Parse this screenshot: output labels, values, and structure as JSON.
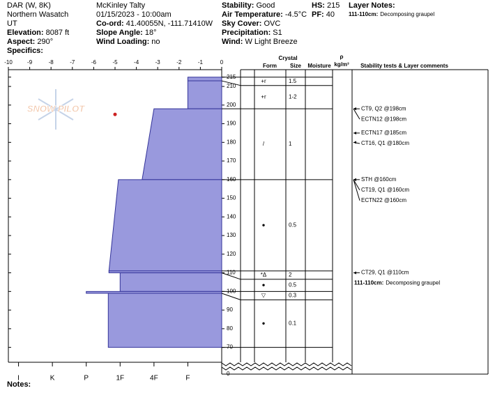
{
  "header": {
    "columns": [
      [
        {
          "value": "DAR (W, 8K)"
        },
        {
          "value": "Northern Wasatch"
        },
        {
          "value": "UT"
        },
        {
          "label": "Elevation:",
          "value": "8087 ft"
        },
        {
          "label": "Aspect:",
          "value": "290°"
        },
        {
          "label": "Specifics:"
        }
      ],
      [
        {
          "value": "McKinley Talty"
        },
        {
          "value": "01/15/2023 - 10:00am"
        },
        {
          "label": "Co-ord:",
          "value": "41.40055N, -111.71410W"
        },
        {
          "label": "Slope Angle:",
          "value": "18°"
        },
        {
          "label": "Wind Loading:",
          "value": "no"
        }
      ],
      [
        {
          "label": "Stability:",
          "value": "Good"
        },
        {
          "label": "Air Temperature:",
          "value": "-4.5°C"
        },
        {
          "label": "Sky Cover:",
          "value": "OVC"
        },
        {
          "label": "Precipitation:",
          "value": "S1"
        },
        {
          "label": "Wind:",
          "value": "W Light Breeze"
        }
      ],
      [
        {
          "label": "HS:",
          "value": "215"
        },
        {
          "label": "PF:",
          "value": "40"
        }
      ],
      [
        {
          "label": "Layer Notes:"
        },
        {
          "label": "111-110cm:",
          "value": "Decomposing graupel"
        }
      ]
    ]
  },
  "logo": "SNOW PILOT",
  "notes_label": "Notes:",
  "chart_data": {
    "type": "snow_profile",
    "xlim": [
      -10,
      0
    ],
    "xticks": [
      -10,
      -9,
      -8,
      -7,
      -6,
      -5,
      -4,
      -3,
      -2,
      -1,
      0
    ],
    "hlim": [
      0,
      6.3
    ],
    "hardness_ticks": [
      {
        "value": 6,
        "label": "I"
      },
      {
        "value": 5,
        "label": "K"
      },
      {
        "value": 4,
        "label": "P"
      },
      {
        "value": 3,
        "label": "1F"
      },
      {
        "value": 2,
        "label": "4F"
      },
      {
        "value": 1,
        "label": "F"
      }
    ],
    "ylim": [
      62,
      219
    ],
    "yticks": [
      215,
      210,
      200,
      190,
      180,
      170,
      160,
      150,
      140,
      130,
      120,
      110,
      100,
      90,
      80,
      70
    ],
    "ground_tick": 0,
    "bar_color": "#9999dd",
    "temperature_color": "#cc2222",
    "temperatures": [
      {
        "depth": 195,
        "temp": -5
      }
    ],
    "table_headers": {
      "form": "Form",
      "size": [
        "Crystal",
        "Size"
      ],
      "moisture": "Moisture",
      "density": [
        "ρ",
        "kg/m³"
      ],
      "comments": "Stability tests & Layer comments"
    },
    "layers": [
      {
        "top": 215,
        "bottom": 213,
        "hardness_top": 1,
        "hardness_bottom": 1,
        "form": "+r",
        "size": "1.5"
      },
      {
        "top": 213,
        "bottom": 198,
        "hardness_top": 1,
        "hardness_bottom": 1,
        "form": "+r",
        "size": "1-2"
      },
      {
        "top": 198,
        "bottom": 160,
        "hardness_top": 2,
        "hardness_bottom": 2.35,
        "form": "/",
        "size": "1"
      },
      {
        "top": 160,
        "bottom": 111,
        "hardness_top": 3.05,
        "hardness_bottom": 3.33,
        "form": "●",
        "size": "0.5"
      },
      {
        "top": 111,
        "bottom": 110,
        "hardness_top": 3.33,
        "hardness_bottom": 3.33,
        "form": "*Δ",
        "size": "2"
      },
      {
        "top": 110,
        "bottom": 100,
        "hardness_top": 3,
        "hardness_bottom": 3,
        "form": "●",
        "size": "0.5"
      },
      {
        "top": 100,
        "bottom": 99,
        "hardness_top": 4,
        "hardness_bottom": 4,
        "form": "▽",
        "size": "0.3"
      },
      {
        "top": 99,
        "bottom": 70,
        "hardness_top": 3.35,
        "hardness_bottom": 3.35,
        "form": "●",
        "size": "0.1"
      }
    ],
    "tests": [
      {
        "text": "CT9, Q2 @198cm",
        "depth": 198
      },
      {
        "text": "ECTN12 @198cm",
        "depth": 198
      },
      {
        "text": "ECTN17 @185cm",
        "depth": 185
      },
      {
        "text": "CT16, Q1 @180cm",
        "depth": 180
      },
      {
        "text": "STH @160cm",
        "depth": 160
      },
      {
        "text": "CT19, Q1 @160cm",
        "depth": 160
      },
      {
        "text": "ECTN22 @160cm",
        "depth": 160
      },
      {
        "text": "CT29, Q1 @110cm",
        "depth": 110
      }
    ],
    "comments": [
      {
        "label": "111-110cm:",
        "value": "Decomposing graupel"
      }
    ]
  }
}
